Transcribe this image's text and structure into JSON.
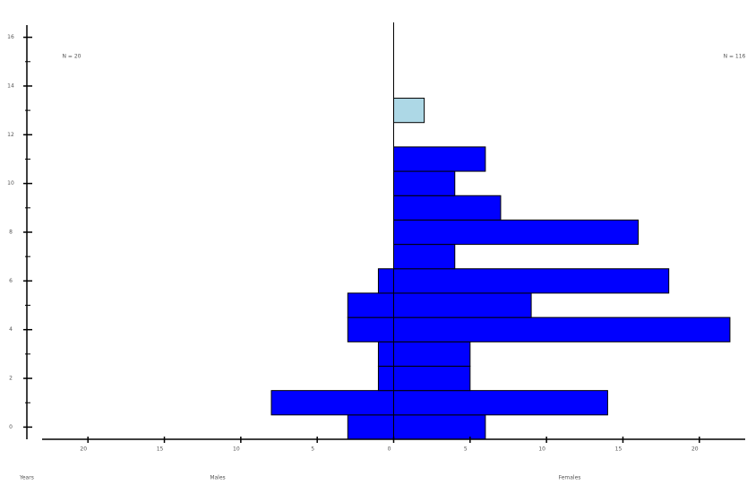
{
  "chart_data": {
    "type": "pyramid",
    "categories": [
      0,
      1,
      2,
      3,
      4,
      5,
      6,
      7,
      8,
      9,
      10,
      11,
      12,
      13
    ],
    "series": [
      {
        "name": "Males",
        "side": "left",
        "color": "#0000ff",
        "values": [
          3,
          8,
          1,
          1,
          3,
          3,
          1,
          0,
          0,
          0,
          0,
          0,
          0,
          0
        ]
      },
      {
        "name": "Females",
        "side": "right",
        "color": "#0000ff",
        "values": [
          6,
          14,
          5,
          5,
          22,
          9,
          18,
          4,
          16,
          7,
          4,
          6,
          0,
          0
        ]
      },
      {
        "side": "right",
        "color": "#add8e6",
        "values": [
          0,
          0,
          0,
          0,
          0,
          0,
          0,
          0,
          0,
          0,
          0,
          0,
          0,
          2
        ]
      }
    ],
    "y_axis_label": "Years",
    "left_n": "N = 20",
    "right_n": "N = 116",
    "xlim": [
      -23,
      23
    ],
    "xticks": [
      {
        "value": -20,
        "label": "20"
      },
      {
        "value": -15,
        "label": "15"
      },
      {
        "value": -10,
        "label": "10"
      },
      {
        "value": -5,
        "label": "5"
      },
      0,
      5,
      10,
      15,
      20
    ],
    "ylim": [
      -0.5,
      16.5
    ],
    "yticks": [
      0,
      2,
      4,
      6,
      8,
      10,
      12,
      14,
      16
    ],
    "yminorticks": [
      1,
      3,
      5,
      7,
      9,
      11,
      13,
      15
    ]
  }
}
